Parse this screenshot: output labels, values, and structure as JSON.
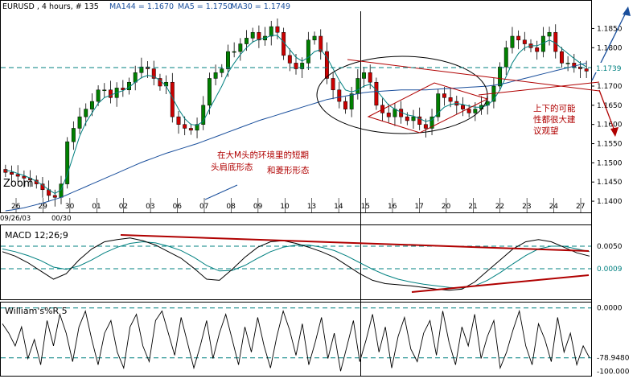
{
  "header": {
    "symbol": "EURUSD , 4 hours, # 135",
    "ma144": "MA144 = 1.1670",
    "ma5": "MA5 = 1.1750",
    "ma30": "MA30 = 1.1749"
  },
  "colors": {
    "up_candle": "#008000",
    "down_candle": "#cc0000",
    "ma_line": "#008080",
    "ma_long": "#1a4f9c",
    "annotation": "#b00000",
    "grid": "#008080",
    "trend_line": "#b00000"
  },
  "zoom_label": "Zoom",
  "date_start": "09/26/03",
  "date_next": "00/30",
  "annotations": {
    "left_line1": "在大M头的环境里的短期",
    "left_line2": "头肩底形态",
    "left_line3": "和菱形形态",
    "right_line1": "上下的可能",
    "right_line2": "性都很大建",
    "right_line3": "议观望"
  },
  "chart_data": [
    {
      "type": "line",
      "name": "EURUSD 4h price",
      "x_tick_labels": [
        "26",
        "29",
        "30",
        "01",
        "02",
        "03",
        "06",
        "07",
        "08",
        "09",
        "10",
        "13",
        "14",
        "15",
        "16",
        "17",
        "20",
        "21",
        "22",
        "23",
        "24",
        "27"
      ],
      "y_ticks": [
        1.14,
        1.145,
        1.15,
        1.155,
        1.16,
        1.165,
        1.17,
        1.175,
        1.18,
        1.185
      ],
      "y_tick_labels": [
        "1.1400",
        "1.1450",
        "1.1500",
        "1.1550",
        "1.1600",
        "1.1650",
        "1.1700",
        "1.1750",
        "1.1800",
        "1.1850"
      ],
      "ylim": [
        1.1375,
        1.1895
      ],
      "current_price": 1.1739,
      "current_price_label": "1.1739",
      "close_series": [
        1.1475,
        1.147,
        1.1465,
        1.146,
        1.1455,
        1.1445,
        1.143,
        1.1415,
        1.141,
        1.1445,
        1.1555,
        1.159,
        1.162,
        1.164,
        1.166,
        1.169,
        1.169,
        1.167,
        1.1695,
        1.169,
        1.171,
        1.1735,
        1.175,
        1.1745,
        1.172,
        1.17,
        1.171,
        1.162,
        1.16,
        1.159,
        1.1585,
        1.16,
        1.165,
        1.172,
        1.1735,
        1.1745,
        1.179,
        1.179,
        1.181,
        1.1825,
        1.184,
        1.182,
        1.183,
        1.1855,
        1.184,
        1.178,
        1.176,
        1.1745,
        1.176,
        1.182,
        1.183,
        1.179,
        1.172,
        1.169,
        1.166,
        1.164,
        1.168,
        1.172,
        1.1735,
        1.171,
        1.165,
        1.163,
        1.162,
        1.164,
        1.162,
        1.161,
        1.162,
        1.16,
        1.159,
        1.162,
        1.168,
        1.167,
        1.166,
        1.165,
        1.164,
        1.163,
        1.164,
        1.165,
        1.166,
        1.17,
        1.175,
        1.18,
        1.183,
        1.182,
        1.181,
        1.18,
        1.179,
        1.183,
        1.184,
        1.179,
        1.176,
        1.176,
        1.175,
        1.1745,
        1.1739
      ],
      "ma_short_series": [
        1.148,
        1.1478,
        1.1472,
        1.1467,
        1.146,
        1.1452,
        1.1442,
        1.143,
        1.142,
        1.143,
        1.147,
        1.152,
        1.157,
        1.1605,
        1.163,
        1.1655,
        1.167,
        1.1676,
        1.1683,
        1.1688,
        1.1697,
        1.171,
        1.1722,
        1.1728,
        1.1725,
        1.1715,
        1.17,
        1.167,
        1.164,
        1.1615,
        1.16,
        1.1598,
        1.1608,
        1.164,
        1.167,
        1.17,
        1.1735,
        1.176,
        1.1782,
        1.18,
        1.1815,
        1.1822,
        1.1825,
        1.1832,
        1.1832,
        1.1815,
        1.1795,
        1.1775,
        1.1765,
        1.1775,
        1.179,
        1.1795,
        1.1775,
        1.1745,
        1.1715,
        1.169,
        1.1685,
        1.169,
        1.17,
        1.1705,
        1.169,
        1.167,
        1.165,
        1.164,
        1.1632,
        1.1625,
        1.1622,
        1.1615,
        1.1608,
        1.1612,
        1.163,
        1.1645,
        1.1652,
        1.1655,
        1.1652,
        1.1648,
        1.1645,
        1.1645,
        1.165,
        1.1665,
        1.169,
        1.1725,
        1.176,
        1.1785,
        1.18,
        1.1805,
        1.1805,
        1.1812,
        1.182,
        1.1812,
        1.1798,
        1.1785,
        1.1772,
        1.176,
        1.175
      ],
      "ma_long_series": [
        1.1375,
        1.1377,
        1.138,
        1.1383,
        1.1387,
        1.1391,
        1.1395,
        1.14,
        1.1405,
        1.141,
        1.1417,
        1.1424,
        1.1431,
        1.1438,
        1.1445,
        1.1452,
        1.1459,
        1.1466,
        1.1473,
        1.148,
        1.1487,
        1.1494,
        1.1501,
        1.1507,
        1.1513,
        1.1519,
        1.1525,
        1.153,
        1.1535,
        1.154,
        1.1545,
        1.155,
        1.1556,
        1.1562,
        1.1568,
        1.1574,
        1.158,
        1.1586,
        1.1592,
        1.1598,
        1.1604,
        1.161,
        1.1615,
        1.162,
        1.1625,
        1.163,
        1.1635,
        1.164,
        1.1645,
        1.165,
        1.1655,
        1.166,
        1.1665,
        1.1668,
        1.1671,
        1.1674,
        1.1677,
        1.168,
        1.1683,
        1.1685,
        1.1686,
        1.1687,
        1.1688,
        1.1689,
        1.169,
        1.169,
        1.169,
        1.169,
        1.169,
        1.1691,
        1.1692,
        1.1693,
        1.1694,
        1.1695,
        1.1696,
        1.1697,
        1.1698,
        1.1699,
        1.17,
        1.1702,
        1.1705,
        1.1708,
        1.1712,
        1.1716,
        1.172,
        1.1724,
        1.1728,
        1.1732,
        1.1736,
        1.174,
        1.1744,
        1.1748,
        1.1752,
        1.1756,
        1.176
      ]
    },
    {
      "type": "line",
      "name": "MACD",
      "title": "MACD 12;26;9",
      "y_ticks": [
        0.005,
        0.0009
      ],
      "y_tick_labels": [
        "0.0050",
        "0.0009"
      ],
      "ylim": [
        -0.0045,
        0.0085
      ],
      "macd_series": [
        0.004,
        0.0032,
        0.002,
        0.0005,
        -0.001,
        0.0,
        0.0025,
        0.0045,
        0.0058,
        0.0062,
        0.0065,
        0.006,
        0.0052,
        0.004,
        0.0028,
        0.001,
        -0.001,
        -0.0012,
        0.0008,
        0.003,
        0.0048,
        0.0058,
        0.006,
        0.0055,
        0.0048,
        0.004,
        0.003,
        0.0015,
        0.0,
        -0.0012,
        -0.0018,
        -0.002,
        -0.0022,
        -0.0025,
        -0.0028,
        -0.003,
        -0.0028,
        -0.0015,
        0.0005,
        0.0025,
        0.0045,
        0.0058,
        0.0062,
        0.0058,
        0.0048,
        0.0038,
        0.0032
      ],
      "signal_series": [
        0.0045,
        0.004,
        0.0033,
        0.0024,
        0.0012,
        0.0008,
        0.0014,
        0.0025,
        0.0038,
        0.0048,
        0.0055,
        0.0058,
        0.0056,
        0.005,
        0.0042,
        0.003,
        0.0015,
        0.0005,
        0.0006,
        0.0015,
        0.0028,
        0.004,
        0.0048,
        0.0052,
        0.0052,
        0.0048,
        0.0042,
        0.0032,
        0.002,
        0.0008,
        -0.0002,
        -0.001,
        -0.0015,
        -0.0019,
        -0.0022,
        -0.0025,
        -0.0026,
        -0.0022,
        -0.0012,
        0.0002,
        0.0018,
        0.0033,
        0.0045,
        0.005,
        0.005,
        0.0045,
        0.004
      ]
    },
    {
      "type": "line",
      "name": "William's %R",
      "title": "William's%R 5",
      "y_ticks": [
        0.0,
        -78.948,
        -100.0
      ],
      "y_tick_labels": [
        "0.0000",
        "-78.9480",
        "-100.000"
      ],
      "ylim": [
        -106,
        6
      ],
      "series": [
        -25,
        -40,
        -60,
        -30,
        -80,
        -50,
        -90,
        -20,
        -60,
        -10,
        -40,
        -85,
        -30,
        -5,
        -50,
        -90,
        -40,
        -20,
        -70,
        -95,
        -30,
        -10,
        -60,
        -85,
        -20,
        -5,
        -40,
        -75,
        -15,
        -55,
        -95,
        -60,
        -20,
        -80,
        -40,
        -10,
        -50,
        -90,
        -30,
        -70,
        -15,
        -60,
        -95,
        -45,
        -5,
        -35,
        -75,
        -25,
        -90,
        -55,
        -15,
        -80,
        -40,
        -100,
        -60,
        -20,
        -85,
        -50,
        -10,
        -70,
        -30,
        -95,
        -45,
        -15,
        -65,
        -85,
        -40,
        -20,
        -75,
        -5,
        -55,
        -90,
        -30,
        -60,
        -10,
        -80,
        -45,
        -20,
        -95,
        -70,
        -35,
        -5,
        -60,
        -90,
        -25,
        -50,
        -85,
        -15,
        -70,
        -40,
        -90,
        -60,
        -79
      ]
    }
  ]
}
